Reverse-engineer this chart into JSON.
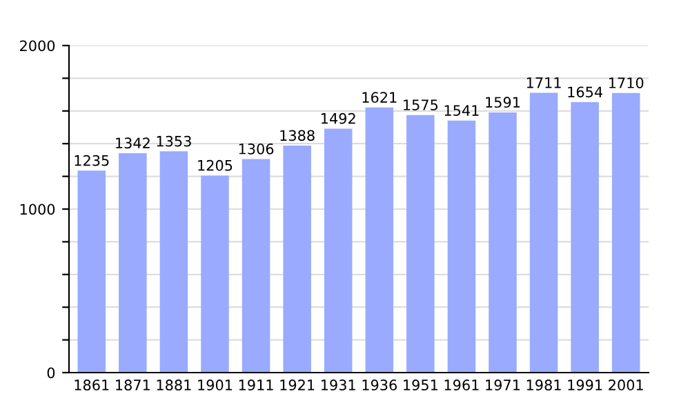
{
  "chart_data": {
    "type": "bar",
    "categories": [
      "1861",
      "1871",
      "1881",
      "1901",
      "1911",
      "1921",
      "1931",
      "1936",
      "1951",
      "1961",
      "1971",
      "1981",
      "1991",
      "2001"
    ],
    "values": [
      1235,
      1342,
      1353,
      1205,
      1306,
      1388,
      1492,
      1621,
      1575,
      1541,
      1591,
      1711,
      1654,
      1710
    ],
    "color": "#99aaff",
    "data_labels": true,
    "ylim": [
      0,
      2000
    ],
    "yticks": [
      0,
      {
        "value": 200,
        "label": null
      },
      {
        "value": 400,
        "label": null
      },
      {
        "value": 600,
        "label": null
      },
      {
        "value": 800,
        "label": null
      },
      1000,
      {
        "value": 1200,
        "label": null
      },
      {
        "value": 1400,
        "label": null
      },
      {
        "value": 1600,
        "label": null
      },
      {
        "value": 1800,
        "label": null
      },
      2000
    ],
    "grid": "y"
  }
}
